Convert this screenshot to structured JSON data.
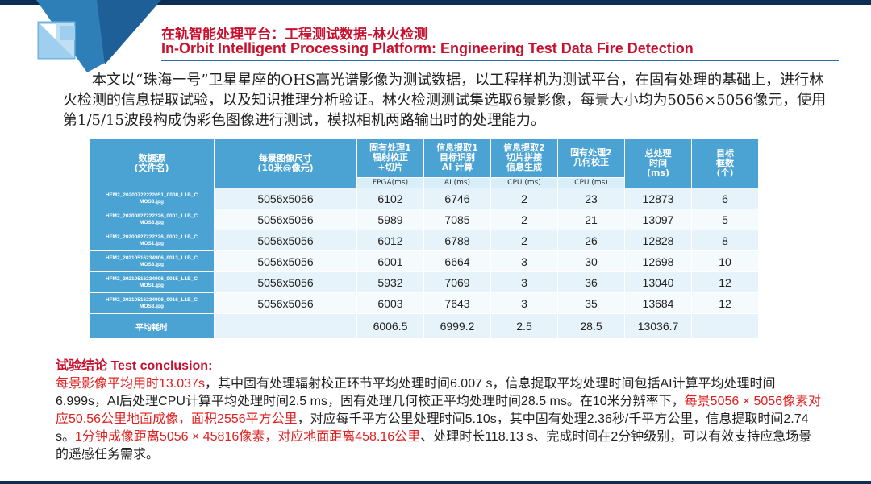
{
  "colors": {
    "accent": "#c8102e",
    "header_blue": "#4aa3d3",
    "navy": "#0d2d52"
  },
  "title": {
    "cn": "在轨智能处理平台：工程测试数据-林火检测",
    "en": "In-Orbit Intelligent Processing Platform:  Engineering Test Data Fire Detection"
  },
  "intro": "本文以“珠海一号”卫星星座的OHS高光谱影像为测试数据，以工程样机为测试平台，在固有处理的基础上，进行林火检测的信息提取试验，以及知识推理分析验证。林火检测测试集选取6景影像，每景大小均为5056×5056像元，使用第1/5/15波段构成伪彩色图像进行测试，模拟相机两路输出时的处理能力。",
  "table": {
    "headers": [
      "数据源\n(文件名)",
      "每景图像尺寸\n(10米@像元)",
      "固有处理1\n辐射校正\n+切片",
      "信息提取1\n目标识别\nAI 计算",
      "信息提取2\n切片拼接\n信息生成",
      "固有处理2\n几何校正",
      "总处理\n时间\n(ms)",
      "目标\n框数\n(个)"
    ],
    "subheaders": [
      "FPGA(ms)",
      "AI (ms)",
      "CPU (ms)",
      "CPU (ms)"
    ],
    "rows": [
      [
        "HEM2_20200722222051_0008_L1B_C\nMOS3.jpg",
        "5056x5056",
        "6102",
        "6746",
        "2",
        "23",
        "12873",
        "6"
      ],
      [
        "HFM2_20200827222226_0001_L1B_C\nMOS3.jpg",
        "5056x5056",
        "5989",
        "7085",
        "2",
        "21",
        "13097",
        "5"
      ],
      [
        "HFM2_20200827222226_0002_L1B_C\nMOS1.jpg",
        "5056x5056",
        "6012",
        "6788",
        "2",
        "26",
        "12828",
        "8"
      ],
      [
        "HFM2_20210516234906_0013_L1B_C\nMOS3.jpg",
        "5056x5056",
        "6001",
        "6664",
        "3",
        "30",
        "12698",
        "10"
      ],
      [
        "HFM2_20210516234906_0015_L1B_C\nMOS1.jpg",
        "5056x5056",
        "5932",
        "7069",
        "3",
        "36",
        "13040",
        "12"
      ],
      [
        "HFM2_20210516234906_0016_L1B_C\nMOS3.jpg",
        "5056x5056",
        "6003",
        "7643",
        "3",
        "35",
        "13684",
        "12"
      ]
    ],
    "avg": [
      "平均耗时",
      "",
      "6006.5",
      "6999.2",
      "2.5",
      "28.5",
      "13036.7",
      ""
    ]
  },
  "conclusion": {
    "title_cn": "试验结论",
    "title_en": " Test conclusion:",
    "p1_red": "每景影像平均用时13.037s",
    "p2": "，其中固有处理辐射校正环节平均处理时间6.007 s，信息提取平均处理时间包括AI计算平均处理时间6.999s，AI后处理CPU计算平均处理时间2.5 ms，固有处理几何校正平均处理时间28.5 ms。在10米分辨率下，",
    "p3_red": "每景5056 × 5056像素对应50.56公里地面成像，面积2556平方公里",
    "p4": "，对应每千平方公里处理时间5.10s，其中固有处理2.36秒/千平方公里，信息提取时间2.74 s。",
    "p5_red": "1分钟成像距离5056 × 45816像素，对应地面距离458.16公里",
    "p6": "、处理时长118.13 s、完成时间在2分钟级别，可以有效支持应急场景的遥感任务需求。"
  }
}
